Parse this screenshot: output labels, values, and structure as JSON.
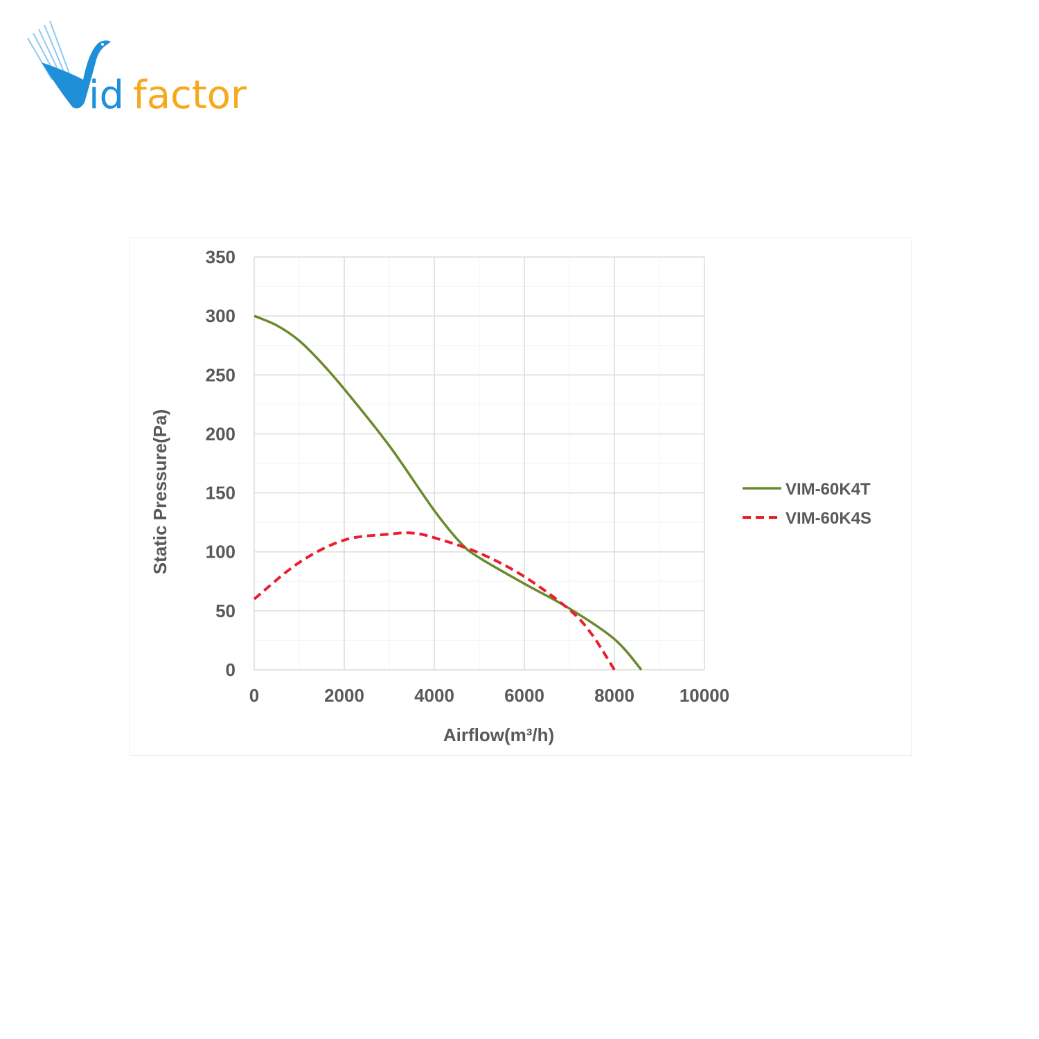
{
  "logo": {
    "text_part1": "id",
    "text_part2": "factor",
    "full": "Vidfactor",
    "colors": {
      "blue": "#1e8fd8",
      "orange": "#f5a91c"
    }
  },
  "chart_data": {
    "type": "line",
    "title": "",
    "xlabel": "Airflow(m³/h)",
    "ylabel": "Static Pressure(Pa)",
    "xlim": [
      0,
      10000
    ],
    "ylim": [
      0,
      350
    ],
    "xticks": [
      0,
      2000,
      4000,
      6000,
      8000,
      10000
    ],
    "yticks": [
      0,
      50,
      100,
      150,
      200,
      250,
      300,
      350
    ],
    "grid": true,
    "legend_position": "right",
    "series": [
      {
        "name": "VIM-60K4T",
        "color": "#6a8a2e",
        "style": "solid",
        "x": [
          0,
          500,
          1000,
          1500,
          2000,
          3000,
          4000,
          4600,
          5000,
          6000,
          7000,
          8000,
          8600
        ],
        "y": [
          300,
          292,
          279,
          260,
          238,
          190,
          135,
          107,
          95,
          73,
          52,
          26,
          0
        ]
      },
      {
        "name": "VIM-60K4S",
        "color": "#e8202e",
        "style": "dashed",
        "x": [
          0,
          1000,
          2000,
          3000,
          3500,
          4000,
          5000,
          6000,
          7000,
          7500,
          8000
        ],
        "y": [
          60,
          91,
          110,
          115,
          116,
          112,
          99,
          79,
          51,
          30,
          0
        ]
      }
    ]
  }
}
